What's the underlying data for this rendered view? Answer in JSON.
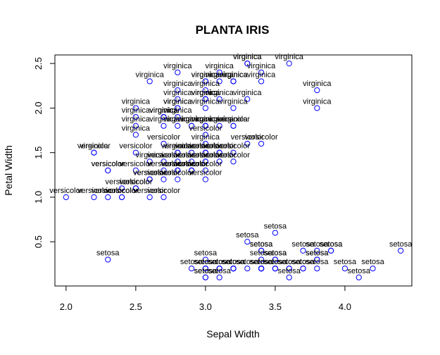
{
  "chart_data": {
    "type": "scatter",
    "title": "PLANTA IRIS",
    "xlabel": "Sepal Width",
    "ylabel": "Petal Width",
    "xlim": [
      1.92,
      4.48
    ],
    "ylim": [
      0.004,
      2.596
    ],
    "xticks": [
      "2.0",
      "2.5",
      "3.0",
      "3.5",
      "4.0"
    ],
    "xtick_values": [
      2.0,
      2.5,
      3.0,
      3.5,
      4.0
    ],
    "yticks": [
      "0.5",
      "1.0",
      "1.5",
      "2.0",
      "2.5"
    ],
    "ytick_values": [
      0.5,
      1.0,
      1.5,
      2.0,
      2.5
    ],
    "marker": "open-circle",
    "marker_color": "#0000ff",
    "label_color": "#000000",
    "grid": false,
    "legend": "none",
    "points": [
      {
        "x": 3.5,
        "y": 0.2,
        "label": "setosa"
      },
      {
        "x": 3.0,
        "y": 0.2,
        "label": "setosa"
      },
      {
        "x": 3.2,
        "y": 0.2,
        "label": "setosa"
      },
      {
        "x": 3.1,
        "y": 0.2,
        "label": "setosa"
      },
      {
        "x": 3.6,
        "y": 0.2,
        "label": "setosa"
      },
      {
        "x": 3.9,
        "y": 0.4,
        "label": "setosa"
      },
      {
        "x": 3.4,
        "y": 0.3,
        "label": "setosa"
      },
      {
        "x": 3.4,
        "y": 0.2,
        "label": "setosa"
      },
      {
        "x": 2.9,
        "y": 0.2,
        "label": "setosa"
      },
      {
        "x": 3.1,
        "y": 0.1,
        "label": "setosa"
      },
      {
        "x": 3.7,
        "y": 0.2,
        "label": "setosa"
      },
      {
        "x": 3.4,
        "y": 0.2,
        "label": "setosa"
      },
      {
        "x": 3.0,
        "y": 0.1,
        "label": "setosa"
      },
      {
        "x": 3.0,
        "y": 0.1,
        "label": "setosa"
      },
      {
        "x": 4.0,
        "y": 0.2,
        "label": "setosa"
      },
      {
        "x": 4.4,
        "y": 0.4,
        "label": "setosa"
      },
      {
        "x": 3.9,
        "y": 0.4,
        "label": "setosa"
      },
      {
        "x": 3.5,
        "y": 0.3,
        "label": "setosa"
      },
      {
        "x": 3.8,
        "y": 0.3,
        "label": "setosa"
      },
      {
        "x": 3.8,
        "y": 0.3,
        "label": "setosa"
      },
      {
        "x": 3.4,
        "y": 0.2,
        "label": "setosa"
      },
      {
        "x": 3.7,
        "y": 0.4,
        "label": "setosa"
      },
      {
        "x": 3.6,
        "y": 0.2,
        "label": "setosa"
      },
      {
        "x": 3.3,
        "y": 0.5,
        "label": "setosa"
      },
      {
        "x": 3.4,
        "y": 0.2,
        "label": "setosa"
      },
      {
        "x": 3.0,
        "y": 0.2,
        "label": "setosa"
      },
      {
        "x": 3.4,
        "y": 0.4,
        "label": "setosa"
      },
      {
        "x": 3.5,
        "y": 0.2,
        "label": "setosa"
      },
      {
        "x": 3.4,
        "y": 0.2,
        "label": "setosa"
      },
      {
        "x": 3.2,
        "y": 0.2,
        "label": "setosa"
      },
      {
        "x": 3.1,
        "y": 0.2,
        "label": "setosa"
      },
      {
        "x": 3.4,
        "y": 0.4,
        "label": "setosa"
      },
      {
        "x": 4.1,
        "y": 0.1,
        "label": "setosa"
      },
      {
        "x": 4.2,
        "y": 0.2,
        "label": "setosa"
      },
      {
        "x": 3.1,
        "y": 0.2,
        "label": "setosa"
      },
      {
        "x": 3.2,
        "y": 0.2,
        "label": "setosa"
      },
      {
        "x": 3.5,
        "y": 0.2,
        "label": "setosa"
      },
      {
        "x": 3.6,
        "y": 0.1,
        "label": "setosa"
      },
      {
        "x": 3.0,
        "y": 0.2,
        "label": "setosa"
      },
      {
        "x": 3.4,
        "y": 0.2,
        "label": "setosa"
      },
      {
        "x": 3.5,
        "y": 0.3,
        "label": "setosa"
      },
      {
        "x": 2.3,
        "y": 0.3,
        "label": "setosa"
      },
      {
        "x": 3.2,
        "y": 0.2,
        "label": "setosa"
      },
      {
        "x": 3.5,
        "y": 0.6,
        "label": "setosa"
      },
      {
        "x": 3.8,
        "y": 0.4,
        "label": "setosa"
      },
      {
        "x": 3.0,
        "y": 0.3,
        "label": "setosa"
      },
      {
        "x": 3.8,
        "y": 0.2,
        "label": "setosa"
      },
      {
        "x": 3.2,
        "y": 0.2,
        "label": "setosa"
      },
      {
        "x": 3.7,
        "y": 0.2,
        "label": "setosa"
      },
      {
        "x": 3.3,
        "y": 0.2,
        "label": "setosa"
      },
      {
        "x": 3.2,
        "y": 1.4,
        "label": "versicolor"
      },
      {
        "x": 3.2,
        "y": 1.5,
        "label": "versicolor"
      },
      {
        "x": 3.1,
        "y": 1.5,
        "label": "versicolor"
      },
      {
        "x": 2.3,
        "y": 1.3,
        "label": "versicolor"
      },
      {
        "x": 2.8,
        "y": 1.5,
        "label": "versicolor"
      },
      {
        "x": 2.8,
        "y": 1.3,
        "label": "versicolor"
      },
      {
        "x": 3.3,
        "y": 1.6,
        "label": "versicolor"
      },
      {
        "x": 2.4,
        "y": 1.0,
        "label": "versicolor"
      },
      {
        "x": 2.9,
        "y": 1.3,
        "label": "versicolor"
      },
      {
        "x": 2.7,
        "y": 1.4,
        "label": "versicolor"
      },
      {
        "x": 2.0,
        "y": 1.0,
        "label": "versicolor"
      },
      {
        "x": 3.0,
        "y": 1.5,
        "label": "versicolor"
      },
      {
        "x": 2.2,
        "y": 1.0,
        "label": "versicolor"
      },
      {
        "x": 2.9,
        "y": 1.4,
        "label": "versicolor"
      },
      {
        "x": 2.9,
        "y": 1.3,
        "label": "versicolor"
      },
      {
        "x": 3.1,
        "y": 1.4,
        "label": "versicolor"
      },
      {
        "x": 3.0,
        "y": 1.5,
        "label": "versicolor"
      },
      {
        "x": 2.7,
        "y": 1.0,
        "label": "versicolor"
      },
      {
        "x": 2.2,
        "y": 1.5,
        "label": "versicolor"
      },
      {
        "x": 2.5,
        "y": 1.1,
        "label": "versicolor"
      },
      {
        "x": 3.2,
        "y": 1.8,
        "label": "versicolor"
      },
      {
        "x": 2.8,
        "y": 1.3,
        "label": "versicolor"
      },
      {
        "x": 2.5,
        "y": 1.5,
        "label": "versicolor"
      },
      {
        "x": 2.8,
        "y": 1.2,
        "label": "versicolor"
      },
      {
        "x": 2.9,
        "y": 1.3,
        "label": "versicolor"
      },
      {
        "x": 3.0,
        "y": 1.4,
        "label": "versicolor"
      },
      {
        "x": 2.8,
        "y": 1.4,
        "label": "versicolor"
      },
      {
        "x": 3.0,
        "y": 1.7,
        "label": "versicolor"
      },
      {
        "x": 2.9,
        "y": 1.5,
        "label": "versicolor"
      },
      {
        "x": 2.6,
        "y": 1.0,
        "label": "versicolor"
      },
      {
        "x": 2.4,
        "y": 1.1,
        "label": "versicolor"
      },
      {
        "x": 2.4,
        "y": 1.0,
        "label": "versicolor"
      },
      {
        "x": 2.7,
        "y": 1.2,
        "label": "versicolor"
      },
      {
        "x": 2.7,
        "y": 1.6,
        "label": "versicolor"
      },
      {
        "x": 3.0,
        "y": 1.5,
        "label": "versicolor"
      },
      {
        "x": 3.4,
        "y": 1.6,
        "label": "versicolor"
      },
      {
        "x": 3.1,
        "y": 1.5,
        "label": "versicolor"
      },
      {
        "x": 2.3,
        "y": 1.3,
        "label": "versicolor"
      },
      {
        "x": 3.0,
        "y": 1.3,
        "label": "versicolor"
      },
      {
        "x": 2.5,
        "y": 1.3,
        "label": "versicolor"
      },
      {
        "x": 2.6,
        "y": 1.2,
        "label": "versicolor"
      },
      {
        "x": 3.0,
        "y": 1.4,
        "label": "versicolor"
      },
      {
        "x": 2.6,
        "y": 1.2,
        "label": "versicolor"
      },
      {
        "x": 2.3,
        "y": 1.0,
        "label": "versicolor"
      },
      {
        "x": 2.7,
        "y": 1.3,
        "label": "versicolor"
      },
      {
        "x": 3.0,
        "y": 1.2,
        "label": "versicolor"
      },
      {
        "x": 2.9,
        "y": 1.3,
        "label": "versicolor"
      },
      {
        "x": 2.9,
        "y": 1.3,
        "label": "versicolor"
      },
      {
        "x": 2.5,
        "y": 1.1,
        "label": "versicolor"
      },
      {
        "x": 2.8,
        "y": 1.3,
        "label": "versicolor"
      },
      {
        "x": 3.3,
        "y": 2.5,
        "label": "virginica"
      },
      {
        "x": 2.7,
        "y": 1.9,
        "label": "virginica"
      },
      {
        "x": 3.0,
        "y": 2.1,
        "label": "virginica"
      },
      {
        "x": 2.9,
        "y": 1.8,
        "label": "virginica"
      },
      {
        "x": 3.0,
        "y": 2.2,
        "label": "virginica"
      },
      {
        "x": 3.0,
        "y": 2.1,
        "label": "virginica"
      },
      {
        "x": 2.5,
        "y": 1.7,
        "label": "virginica"
      },
      {
        "x": 2.9,
        "y": 1.8,
        "label": "virginica"
      },
      {
        "x": 2.5,
        "y": 1.8,
        "label": "virginica"
      },
      {
        "x": 3.6,
        "y": 2.5,
        "label": "virginica"
      },
      {
        "x": 3.2,
        "y": 2.0,
        "label": "virginica"
      },
      {
        "x": 2.7,
        "y": 1.9,
        "label": "virginica"
      },
      {
        "x": 3.0,
        "y": 2.1,
        "label": "virginica"
      },
      {
        "x": 2.5,
        "y": 2.0,
        "label": "virginica"
      },
      {
        "x": 2.8,
        "y": 2.4,
        "label": "virginica"
      },
      {
        "x": 3.2,
        "y": 2.3,
        "label": "virginica"
      },
      {
        "x": 3.0,
        "y": 1.8,
        "label": "virginica"
      },
      {
        "x": 3.8,
        "y": 2.2,
        "label": "virginica"
      },
      {
        "x": 2.6,
        "y": 2.3,
        "label": "virginica"
      },
      {
        "x": 2.2,
        "y": 1.5,
        "label": "virginica"
      },
      {
        "x": 3.2,
        "y": 2.3,
        "label": "virginica"
      },
      {
        "x": 2.8,
        "y": 2.0,
        "label": "virginica"
      },
      {
        "x": 2.8,
        "y": 2.0,
        "label": "virginica"
      },
      {
        "x": 2.7,
        "y": 1.8,
        "label": "virginica"
      },
      {
        "x": 3.3,
        "y": 2.1,
        "label": "virginica"
      },
      {
        "x": 3.2,
        "y": 1.8,
        "label": "virginica"
      },
      {
        "x": 2.8,
        "y": 1.8,
        "label": "virginica"
      },
      {
        "x": 3.0,
        "y": 1.8,
        "label": "virginica"
      },
      {
        "x": 2.8,
        "y": 2.1,
        "label": "virginica"
      },
      {
        "x": 3.0,
        "y": 1.6,
        "label": "virginica"
      },
      {
        "x": 2.8,
        "y": 1.9,
        "label": "virginica"
      },
      {
        "x": 3.8,
        "y": 2.0,
        "label": "virginica"
      },
      {
        "x": 2.8,
        "y": 2.2,
        "label": "virginica"
      },
      {
        "x": 2.8,
        "y": 1.5,
        "label": "virginica"
      },
      {
        "x": 2.6,
        "y": 1.4,
        "label": "virginica"
      },
      {
        "x": 3.0,
        "y": 2.3,
        "label": "virginica"
      },
      {
        "x": 3.4,
        "y": 2.4,
        "label": "virginica"
      },
      {
        "x": 3.1,
        "y": 1.8,
        "label": "virginica"
      },
      {
        "x": 3.0,
        "y": 1.8,
        "label": "virginica"
      },
      {
        "x": 3.1,
        "y": 2.1,
        "label": "virginica"
      },
      {
        "x": 3.1,
        "y": 2.4,
        "label": "virginica"
      },
      {
        "x": 3.1,
        "y": 2.3,
        "label": "virginica"
      },
      {
        "x": 2.7,
        "y": 1.9,
        "label": "virginica"
      },
      {
        "x": 3.2,
        "y": 2.3,
        "label": "virginica"
      },
      {
        "x": 3.3,
        "y": 2.5,
        "label": "virginica"
      },
      {
        "x": 3.0,
        "y": 2.3,
        "label": "virginica"
      },
      {
        "x": 2.5,
        "y": 1.9,
        "label": "virginica"
      },
      {
        "x": 3.0,
        "y": 2.0,
        "label": "virginica"
      },
      {
        "x": 3.4,
        "y": 2.3,
        "label": "virginica"
      },
      {
        "x": 3.0,
        "y": 1.8,
        "label": "virginica"
      }
    ]
  }
}
